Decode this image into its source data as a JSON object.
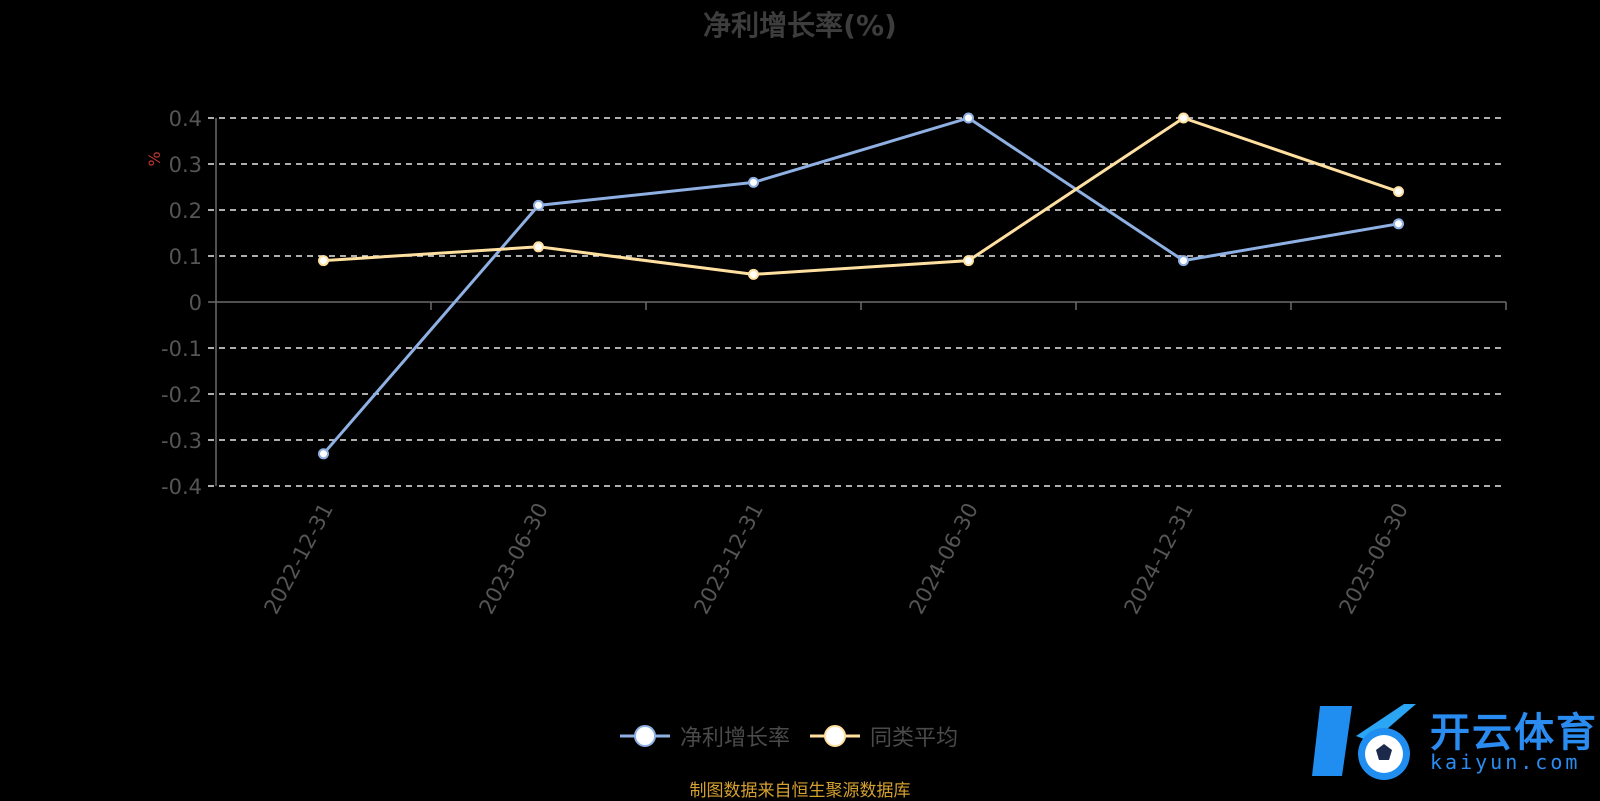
{
  "title": "净利增长率(%)",
  "source": "制图数据来自恒生聚源数据库",
  "logo": {
    "cn": "开云体育",
    "en": "kaiyun.com"
  },
  "colors": {
    "series1": "#8fb0e3",
    "series2": "#ffe0a0",
    "ylabel": "#c0392b",
    "axis": "#6b6b6b",
    "grid": "#e8e8e8",
    "tick": "#555555"
  },
  "chart_data": {
    "type": "line",
    "title": "净利增长率(%)",
    "ylabel": "%",
    "xlabel": "",
    "x": [
      "2022-12-31",
      "2023-06-30",
      "2023-12-31",
      "2024-06-30",
      "2024-12-31",
      "2025-06-30"
    ],
    "series": [
      {
        "name": "净利增长率",
        "values": [
          -0.33,
          0.21,
          0.26,
          0.4,
          0.09,
          0.17
        ]
      },
      {
        "name": "同类平均",
        "values": [
          0.09,
          0.12,
          0.06,
          0.09,
          0.4,
          0.24
        ]
      }
    ],
    "ylim": [
      -0.4,
      0.4
    ],
    "yticks": [
      "0.4",
      "0.3",
      "0.2",
      "0.1",
      "0",
      "-0.1",
      "-0.2",
      "-0.3",
      "-0.4"
    ],
    "grid": true,
    "legend": "bottom"
  }
}
